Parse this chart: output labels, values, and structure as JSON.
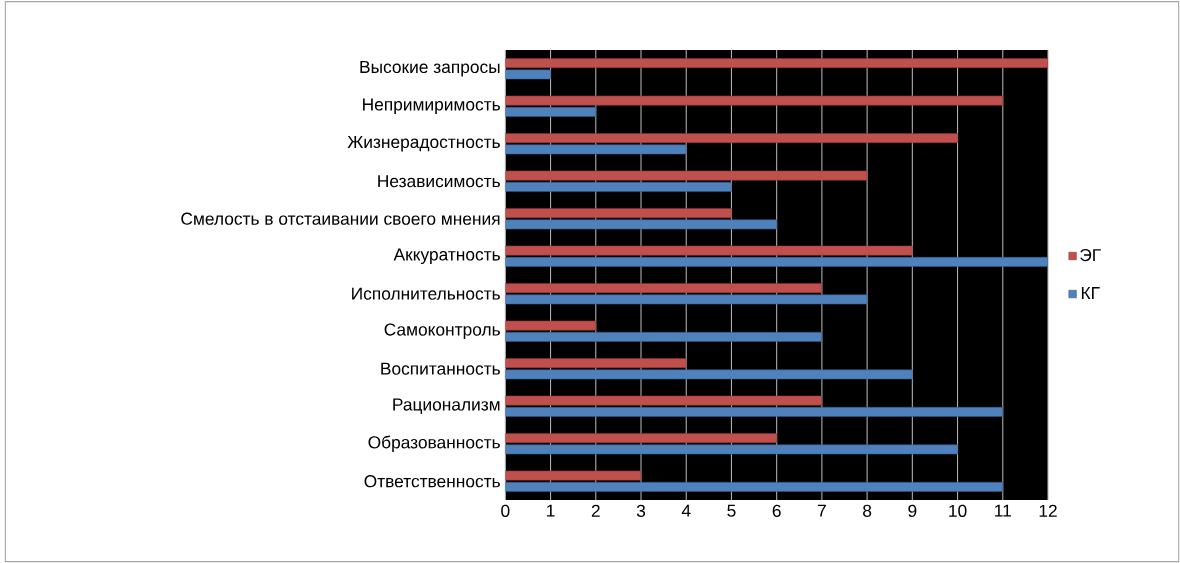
{
  "chart_data": {
    "type": "bar",
    "orientation": "horizontal",
    "categories": [
      "Высокие запросы",
      "Непримиримость",
      "Жизнерадостность",
      "Независимость",
      "Смелость в отстаивании своего мнения",
      "Аккуратность",
      "Исполнительность",
      "Самоконтроль",
      "Воспитанность",
      "Рационализм",
      "Образованность",
      "Ответственность"
    ],
    "series": [
      {
        "name": "ЭГ",
        "color": "#c0504d",
        "values": [
          12,
          11,
          10,
          8,
          5,
          9,
          7,
          2,
          4,
          7,
          6,
          3
        ]
      },
      {
        "name": "КГ",
        "color": "#4f81bd",
        "values": [
          1,
          2,
          4,
          5,
          6,
          12,
          8,
          7,
          9,
          11,
          10,
          11
        ]
      }
    ],
    "xlim": [
      0,
      12
    ],
    "xticks": [
      0,
      1,
      2,
      3,
      4,
      5,
      6,
      7,
      8,
      9,
      10,
      11,
      12
    ],
    "grid": "x",
    "legend": "right"
  }
}
